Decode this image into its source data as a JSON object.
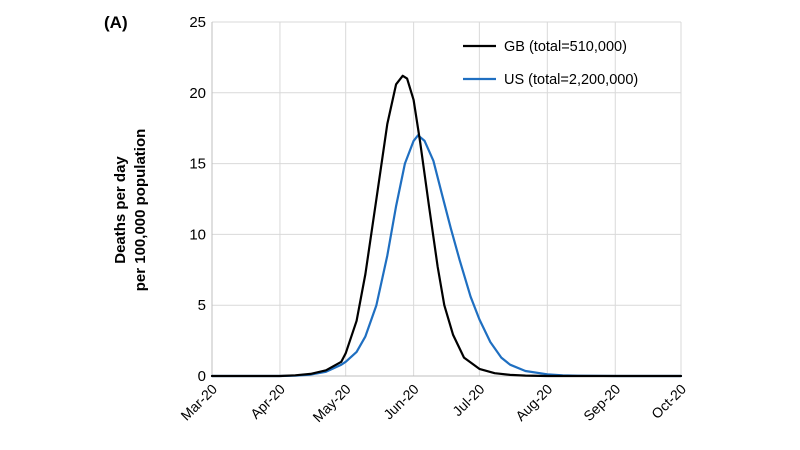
{
  "panel_label": "(A)",
  "chart_data": {
    "type": "line",
    "title": "",
    "xlabel": "",
    "ylabel_lines": [
      "Deaths per day",
      "per 100,000 population"
    ],
    "ylim": [
      0,
      25
    ],
    "yticks": [
      0,
      5,
      10,
      15,
      20,
      25
    ],
    "xticks": [
      "Mar-20",
      "Apr-20",
      "May-20",
      "Jun-20",
      "Jul-20",
      "Aug-20",
      "Sep-20",
      "Oct-20"
    ],
    "x_range": [
      "2020-03-01",
      "2020-10-01"
    ],
    "grid": true,
    "legend_position": "top-right",
    "series": [
      {
        "name": "GB (total=510,000)",
        "color": "#000000",
        "x": [
          "2020-03-01",
          "2020-03-15",
          "2020-04-01",
          "2020-04-08",
          "2020-04-15",
          "2020-04-22",
          "2020-04-29",
          "2020-05-01",
          "2020-05-06",
          "2020-05-10",
          "2020-05-15",
          "2020-05-20",
          "2020-05-24",
          "2020-05-27",
          "2020-05-29",
          "2020-06-01",
          "2020-06-04",
          "2020-06-08",
          "2020-06-12",
          "2020-06-15",
          "2020-06-19",
          "2020-06-24",
          "2020-07-01",
          "2020-07-08",
          "2020-07-15",
          "2020-07-22",
          "2020-08-01",
          "2020-08-15",
          "2020-09-01",
          "2020-09-15",
          "2020-10-01"
        ],
        "values": [
          0,
          0,
          0,
          0.05,
          0.15,
          0.4,
          1.0,
          1.6,
          3.9,
          7.2,
          12.5,
          17.8,
          20.6,
          21.2,
          21.0,
          19.5,
          16.5,
          12.0,
          7.7,
          5.0,
          2.9,
          1.3,
          0.5,
          0.2,
          0.08,
          0.03,
          0,
          0,
          0,
          0,
          0
        ]
      },
      {
        "name": "US (total=2,200,000)",
        "color": "#1f6fc1",
        "x": [
          "2020-03-01",
          "2020-03-15",
          "2020-04-01",
          "2020-04-08",
          "2020-04-15",
          "2020-04-22",
          "2020-04-29",
          "2020-05-01",
          "2020-05-06",
          "2020-05-10",
          "2020-05-15",
          "2020-05-20",
          "2020-05-24",
          "2020-05-28",
          "2020-06-01",
          "2020-06-03",
          "2020-06-06",
          "2020-06-10",
          "2020-06-14",
          "2020-06-18",
          "2020-06-22",
          "2020-06-27",
          "2020-07-01",
          "2020-07-06",
          "2020-07-11",
          "2020-07-15",
          "2020-07-22",
          "2020-08-01",
          "2020-08-08",
          "2020-08-15",
          "2020-09-01",
          "2020-09-15",
          "2020-10-01"
        ],
        "values": [
          0,
          0,
          0,
          0.02,
          0.1,
          0.3,
          0.8,
          1.0,
          1.7,
          2.8,
          5.0,
          8.5,
          12.0,
          15.0,
          16.6,
          17.0,
          16.6,
          15.2,
          12.8,
          10.4,
          8.2,
          5.6,
          4.0,
          2.4,
          1.3,
          0.8,
          0.35,
          0.12,
          0.05,
          0.02,
          0,
          0,
          0
        ]
      }
    ]
  }
}
